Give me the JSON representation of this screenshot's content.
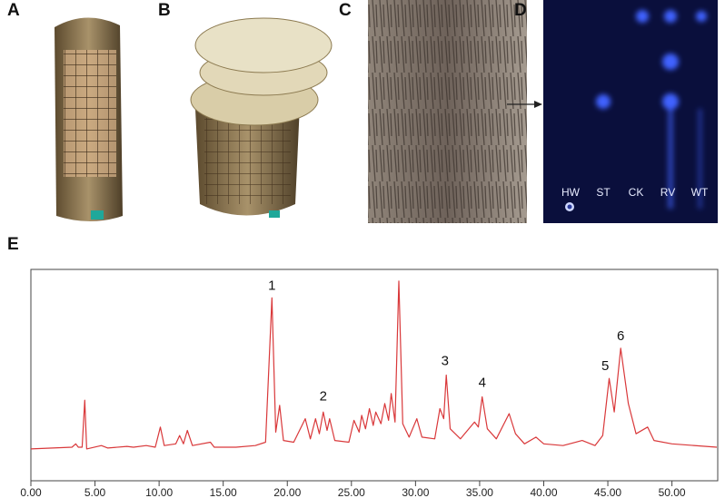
{
  "panel_labels": [
    "A",
    "B",
    "C",
    "D",
    "E"
  ],
  "tlc_lanes": [
    "HW",
    "ST",
    "CK",
    "RV",
    "WT"
  ],
  "chart_data": {
    "type": "line",
    "color": "#d9383a",
    "xlim": [
      0,
      53.5
    ],
    "ylim": [
      -19,
      107
    ],
    "xticks": [
      {
        "value": 0,
        "label": "0.00"
      },
      {
        "value": 5,
        "label": "5.00"
      },
      {
        "value": 10,
        "label": "10.00"
      },
      {
        "value": 15,
        "label": "15.00"
      },
      {
        "value": 20,
        "label": "20.00"
      },
      {
        "value": 25,
        "label": "25.00"
      },
      {
        "value": 30,
        "label": "30.00"
      },
      {
        "value": 35,
        "label": "35.00"
      },
      {
        "value": 40,
        "label": "40.00"
      },
      {
        "value": 45,
        "label": "45.00"
      },
      {
        "value": 50,
        "label": "50.00"
      }
    ],
    "x": [
      0,
      3.2,
      3.5,
      3.7,
      4.0,
      4.2,
      4.35,
      5.5,
      6,
      7.5,
      8,
      9,
      9.7,
      10.1,
      10.4,
      11.3,
      11.6,
      11.9,
      12.2,
      12.6,
      14,
      14.3,
      16,
      17.5,
      18.3,
      18.8,
      19.1,
      19.4,
      19.7,
      20.5,
      21.4,
      21.8,
      22.2,
      22.5,
      22.8,
      23.1,
      23.3,
      23.7,
      24.8,
      25.2,
      25.6,
      25.8,
      26.1,
      26.4,
      26.7,
      26.9,
      27.3,
      27.6,
      27.9,
      28.1,
      28.4,
      28.7,
      29.0,
      29.5,
      30.1,
      30.5,
      31.5,
      31.9,
      32.2,
      32.4,
      32.7,
      33.5,
      34.6,
      34.9,
      35.2,
      35.6,
      36.3,
      37.3,
      37.8,
      38.5,
      39.4,
      40,
      41.5,
      43,
      44,
      44.6,
      45.1,
      45.5,
      46.0,
      46.6,
      47.2,
      48.1,
      48.6,
      50,
      53.5
    ],
    "values": [
      0,
      1,
      3,
      1,
      1,
      29,
      0,
      2,
      0.5,
      1.5,
      1,
      2,
      1,
      13,
      2,
      3,
      8,
      3,
      11,
      2,
      4,
      1,
      1,
      2,
      4,
      90,
      10,
      26,
      5,
      4,
      18,
      6,
      18,
      9,
      22,
      11,
      18,
      5,
      4,
      17,
      10,
      20,
      12,
      24,
      14,
      22,
      15,
      27,
      17,
      33,
      16,
      100,
      15,
      7,
      18,
      7,
      6,
      24,
      18,
      44,
      12,
      6,
      16,
      13,
      31,
      12,
      6,
      21,
      9,
      3,
      7,
      3,
      2,
      5,
      2,
      8,
      42,
      22,
      60,
      27,
      9,
      13,
      5,
      3,
      1
    ],
    "annotations": [
      {
        "text": "1",
        "x": 18.8,
        "y": 97
      },
      {
        "text": "2",
        "x": 22.8,
        "y": 31
      },
      {
        "text": "3",
        "x": 32.3,
        "y": 52
      },
      {
        "text": "4",
        "x": 35.2,
        "y": 39
      },
      {
        "text": "5",
        "x": 44.8,
        "y": 49
      },
      {
        "text": "6",
        "x": 46.0,
        "y": 67
      }
    ]
  }
}
